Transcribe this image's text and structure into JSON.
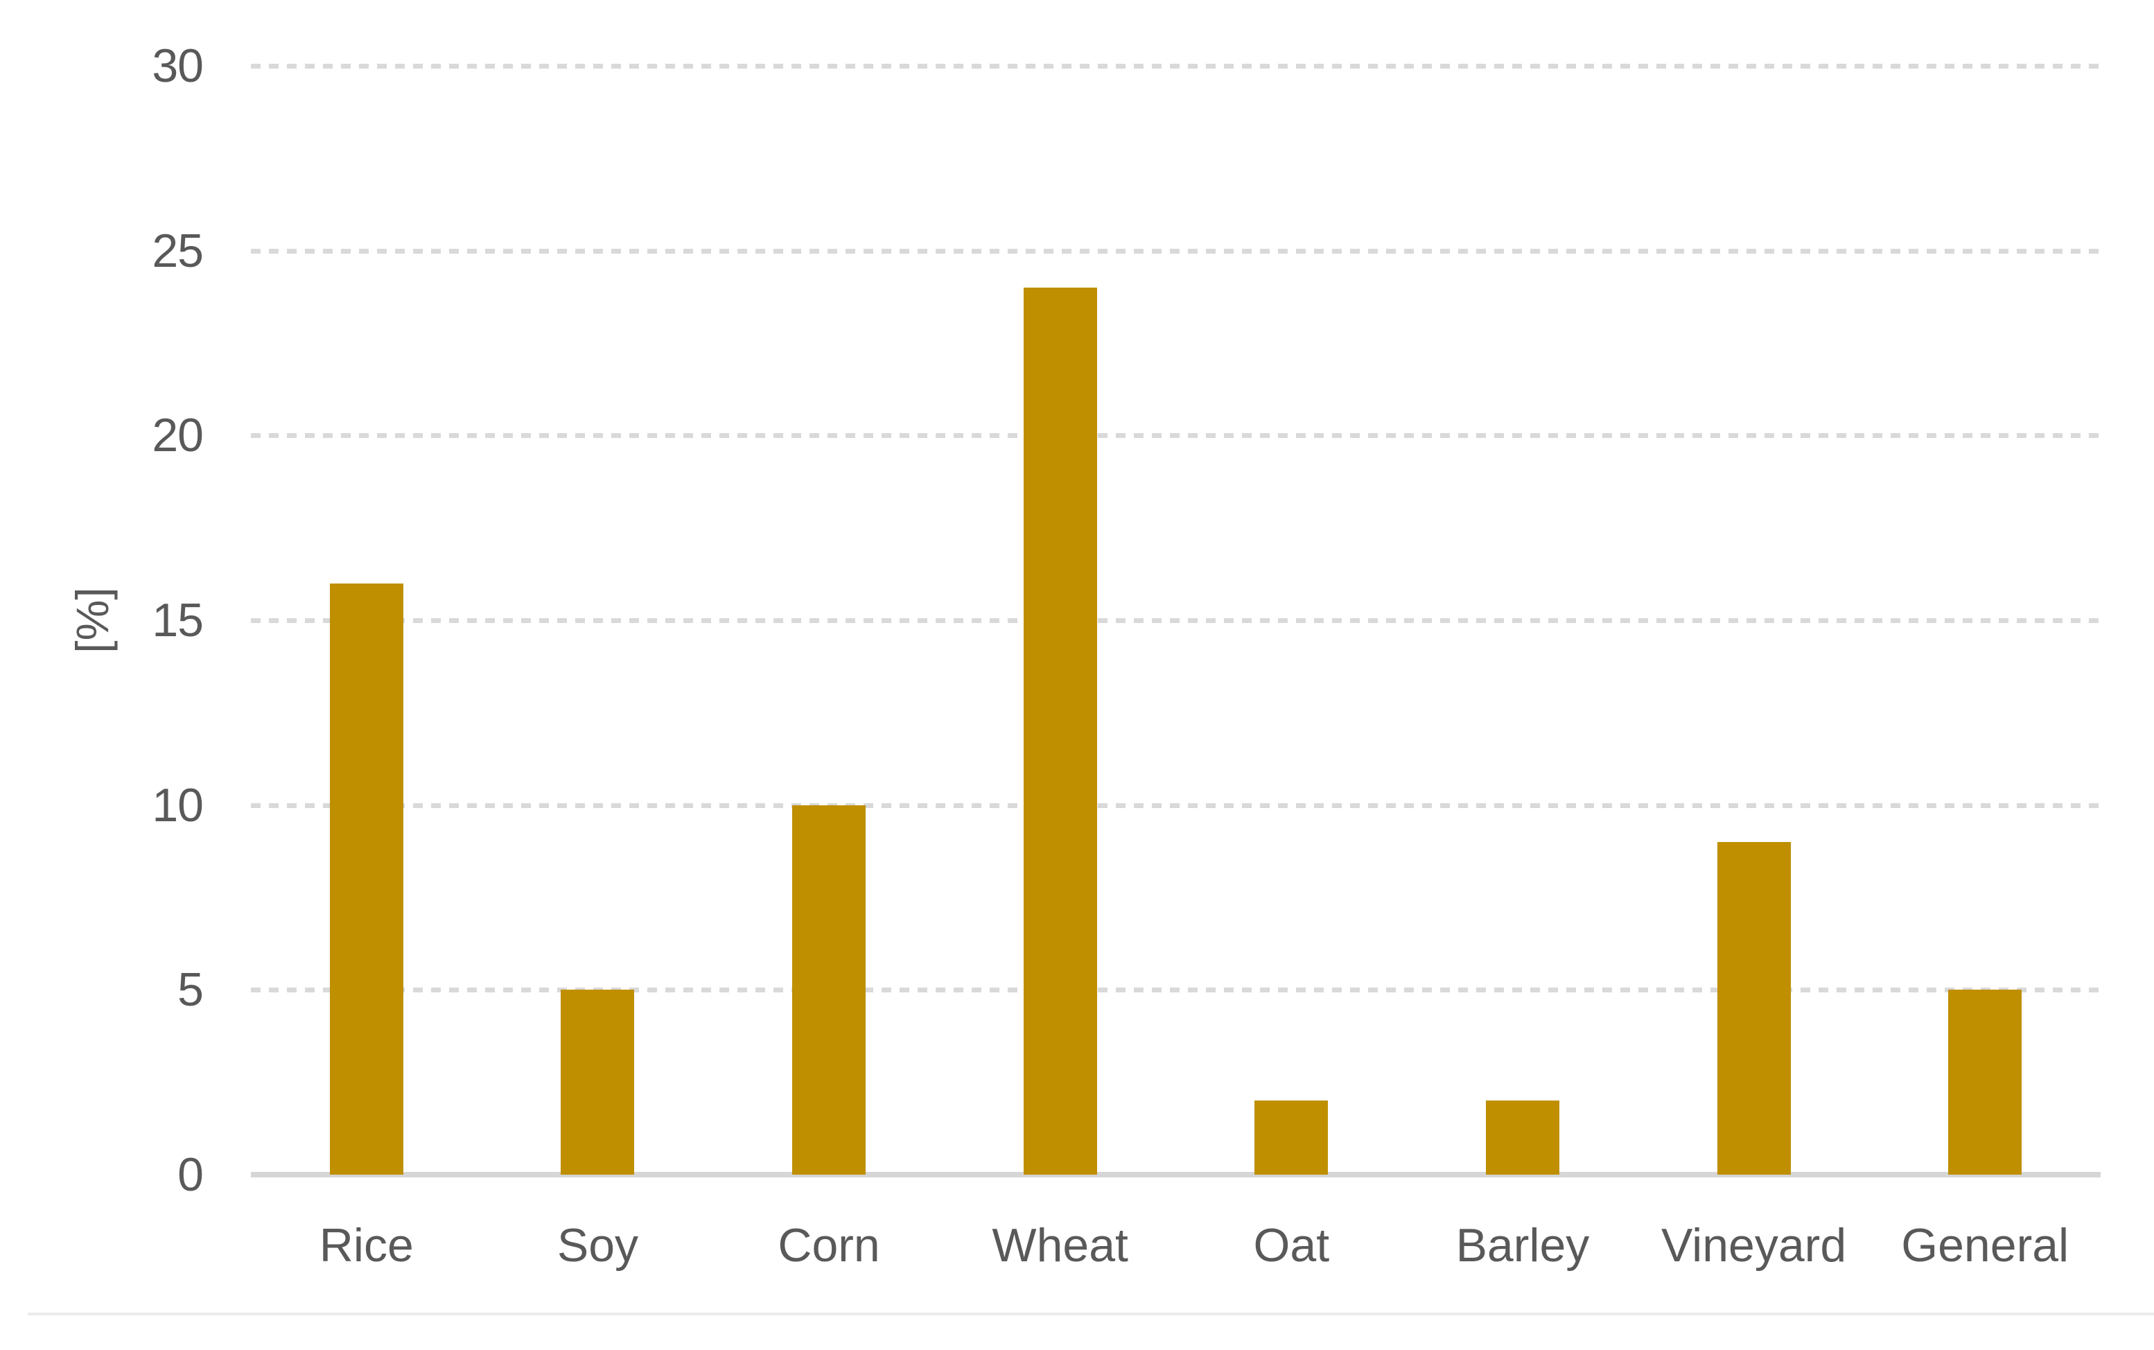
{
  "chart_data": {
    "type": "bar",
    "title": "",
    "xlabel": "",
    "ylabel": "[%]",
    "categories": [
      "Rice",
      "Soy",
      "Corn",
      "Wheat",
      "Oat",
      "Barley",
      "Vineyard",
      "General"
    ],
    "values": [
      16,
      5,
      10,
      24,
      2,
      2,
      9,
      5
    ],
    "ylim": [
      0,
      30
    ],
    "yticks": [
      0,
      5,
      10,
      15,
      20,
      25,
      30
    ],
    "grid": "horizontal-dashed",
    "legend_position": "none",
    "bar_color": "#BF8F00",
    "gridline_color": "#D9D9D9",
    "axis_line_color": "#D6D6D6",
    "text_color": "#595959",
    "background_color": "#FFFFFF"
  }
}
